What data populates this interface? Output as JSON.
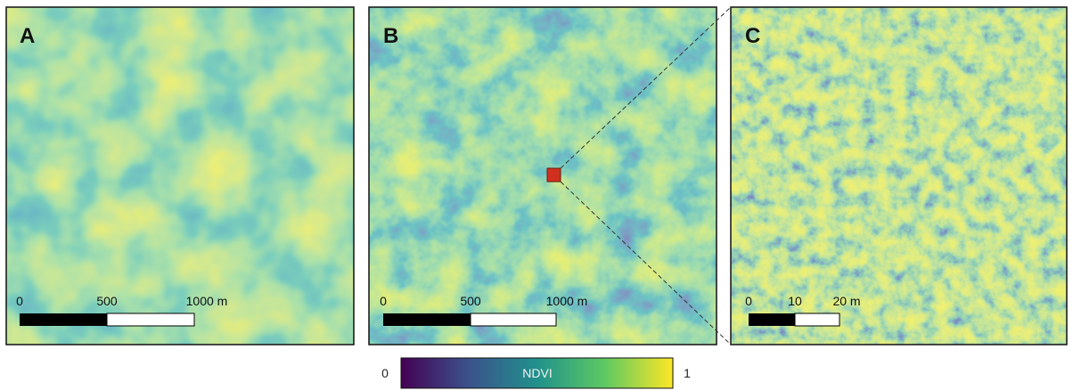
{
  "panels": [
    {
      "label": "A",
      "scale_bar": {
        "labels": [
          "0",
          "500",
          "1000 m"
        ]
      }
    },
    {
      "label": "B",
      "scale_bar": {
        "labels": [
          "0",
          "500",
          "1000 m"
        ]
      }
    },
    {
      "label": "C",
      "scale_bar": {
        "labels": [
          "0",
          "10",
          "20 m"
        ]
      }
    }
  ],
  "colorbar": {
    "title": "NDVI",
    "min_label": "0",
    "max_label": "1"
  }
}
